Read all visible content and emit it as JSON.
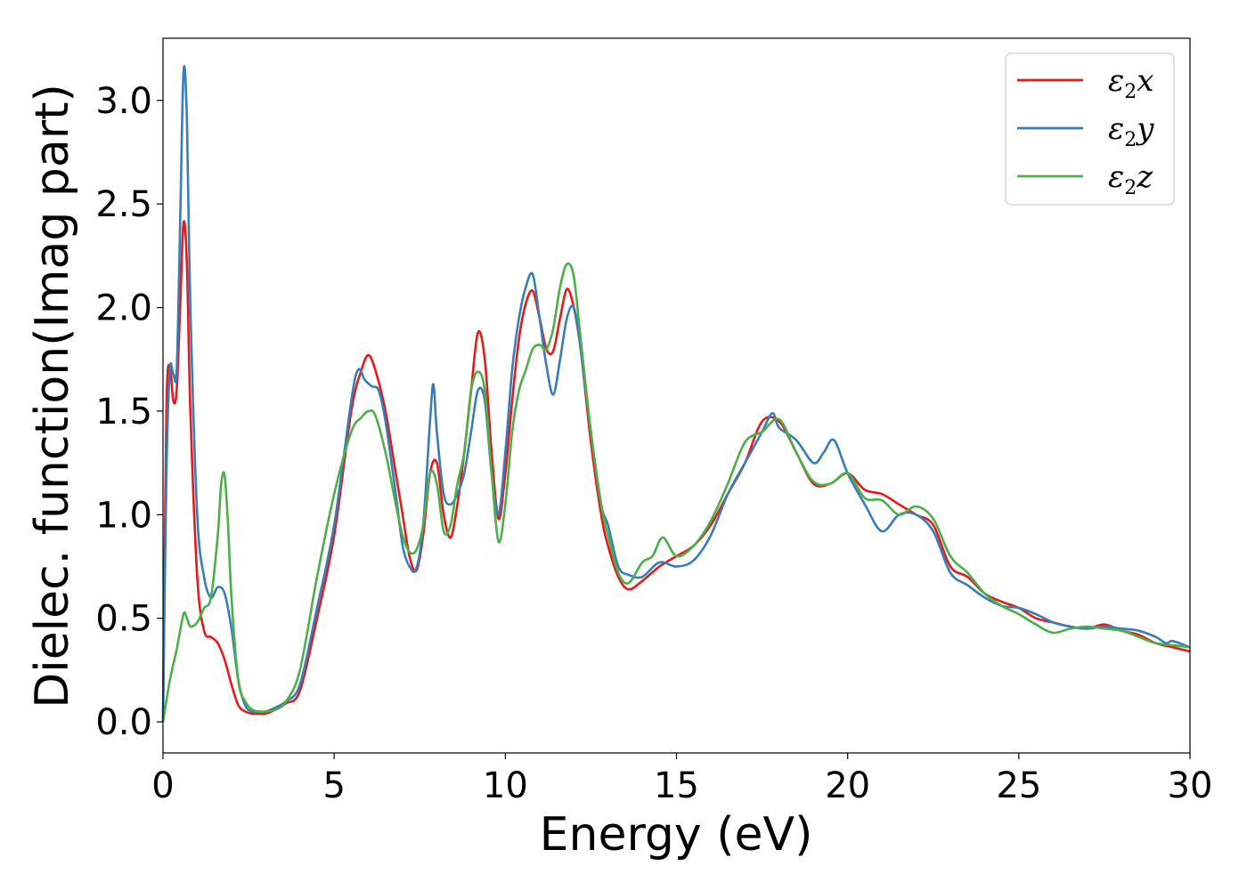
{
  "chart_data": {
    "type": "line",
    "title": "",
    "xlabel": "Energy (eV)",
    "ylabel": "Dielec. function(Imag part)",
    "xlim": [
      0,
      30
    ],
    "ylim": [
      -0.15,
      3.3
    ],
    "xticks": [
      0,
      5,
      10,
      15,
      20,
      25,
      30
    ],
    "xtick_labels": [
      "0",
      "5",
      "10",
      "15",
      "20",
      "25",
      "30"
    ],
    "yticks": [
      0.0,
      0.5,
      1.0,
      1.5,
      2.0,
      2.5,
      3.0
    ],
    "ytick_labels": [
      "0.0",
      "0.5",
      "1.0",
      "1.5",
      "2.0",
      "2.5",
      "3.0"
    ],
    "grid": false,
    "legend_position": "top-right",
    "series": [
      {
        "name": "ε2x",
        "label_base": "ε",
        "label_sub": "2",
        "label_var": "x",
        "color": "#e41a1c",
        "x": [
          0,
          0.1,
          0.2,
          0.3,
          0.4,
          0.5,
          0.6,
          0.7,
          0.8,
          1.0,
          1.2,
          1.4,
          1.6,
          1.8,
          2.0,
          2.2,
          2.4,
          2.6,
          2.8,
          3.0,
          3.3,
          3.6,
          4.0,
          4.5,
          5.0,
          5.5,
          5.8,
          6.0,
          6.2,
          6.5,
          6.8,
          7.0,
          7.2,
          7.4,
          7.6,
          7.8,
          8.0,
          8.2,
          8.4,
          8.6,
          8.8,
          9.0,
          9.2,
          9.4,
          9.6,
          9.8,
          10.0,
          10.2,
          10.4,
          10.6,
          10.8,
          11.0,
          11.2,
          11.4,
          11.6,
          11.8,
          12.0,
          12.2,
          12.5,
          12.8,
          13.0,
          13.3,
          13.6,
          14.0,
          14.5,
          15.0,
          15.5,
          16.0,
          16.5,
          17.0,
          17.5,
          18.0,
          18.5,
          19.0,
          19.5,
          20.0,
          20.5,
          21.0,
          21.5,
          22.0,
          22.5,
          23.0,
          23.5,
          24.0,
          24.5,
          25.0,
          25.5,
          26.0,
          26.5,
          27.0,
          27.5,
          28.0,
          28.5,
          29.0,
          29.5,
          30.0
        ],
        "y": [
          0.0,
          1.5,
          1.72,
          1.55,
          1.6,
          2.0,
          2.41,
          2.2,
          1.5,
          0.7,
          0.44,
          0.41,
          0.38,
          0.3,
          0.18,
          0.08,
          0.05,
          0.04,
          0.04,
          0.04,
          0.06,
          0.09,
          0.15,
          0.5,
          0.9,
          1.5,
          1.7,
          1.77,
          1.7,
          1.5,
          1.2,
          1.0,
          0.8,
          0.73,
          0.9,
          1.2,
          1.25,
          1.0,
          0.89,
          1.05,
          1.3,
          1.6,
          1.88,
          1.75,
          1.3,
          0.98,
          1.2,
          1.55,
          1.85,
          2.02,
          2.08,
          1.95,
          1.8,
          1.79,
          1.95,
          2.09,
          2.0,
          1.8,
          1.35,
          1.0,
          0.85,
          0.7,
          0.64,
          0.68,
          0.75,
          0.8,
          0.85,
          0.95,
          1.1,
          1.25,
          1.45,
          1.45,
          1.3,
          1.15,
          1.15,
          1.2,
          1.12,
          1.1,
          1.05,
          1.0,
          0.95,
          0.75,
          0.7,
          0.62,
          0.58,
          0.55,
          0.5,
          0.48,
          0.46,
          0.45,
          0.47,
          0.44,
          0.42,
          0.38,
          0.36,
          0.34
        ]
      },
      {
        "name": "ε2y",
        "label_base": "ε",
        "label_sub": "2",
        "label_var": "y",
        "color": "#377eb8",
        "x": [
          0,
          0.1,
          0.2,
          0.3,
          0.4,
          0.5,
          0.6,
          0.7,
          0.8,
          1.0,
          1.2,
          1.4,
          1.6,
          1.8,
          2.0,
          2.2,
          2.4,
          2.6,
          2.8,
          3.0,
          3.3,
          3.6,
          4.0,
          4.5,
          5.0,
          5.5,
          5.7,
          5.9,
          6.1,
          6.3,
          6.5,
          6.8,
          7.0,
          7.2,
          7.4,
          7.6,
          7.8,
          7.9,
          8.0,
          8.2,
          8.4,
          8.6,
          8.8,
          9.0,
          9.2,
          9.4,
          9.6,
          9.8,
          10.0,
          10.2,
          10.4,
          10.6,
          10.8,
          11.0,
          11.2,
          11.4,
          11.6,
          11.8,
          12.0,
          12.2,
          12.5,
          12.8,
          13.0,
          13.3,
          13.6,
          14.0,
          14.5,
          15.0,
          15.5,
          16.0,
          16.5,
          17.0,
          17.5,
          17.8,
          18.0,
          18.5,
          19.0,
          19.3,
          19.6,
          20.0,
          20.5,
          21.0,
          21.5,
          22.0,
          22.5,
          23.0,
          23.5,
          24.0,
          24.5,
          25.0,
          25.5,
          26.0,
          26.5,
          27.0,
          27.5,
          28.0,
          28.5,
          29.0,
          29.3,
          29.5,
          30.0
        ],
        "y": [
          0.0,
          1.2,
          1.7,
          1.68,
          1.7,
          2.4,
          3.14,
          2.9,
          2.0,
          1.0,
          0.7,
          0.6,
          0.65,
          0.62,
          0.45,
          0.2,
          0.08,
          0.05,
          0.05,
          0.05,
          0.07,
          0.1,
          0.18,
          0.55,
          0.95,
          1.55,
          1.7,
          1.65,
          1.62,
          1.6,
          1.45,
          1.1,
          0.85,
          0.75,
          0.74,
          0.95,
          1.45,
          1.63,
          1.4,
          1.1,
          1.05,
          1.1,
          1.2,
          1.4,
          1.6,
          1.55,
          1.2,
          1.0,
          1.3,
          1.7,
          1.95,
          2.1,
          2.16,
          1.95,
          1.72,
          1.58,
          1.75,
          1.95,
          2.0,
          1.8,
          1.4,
          1.05,
          0.95,
          0.75,
          0.71,
          0.7,
          0.77,
          0.75,
          0.78,
          0.9,
          1.1,
          1.25,
          1.4,
          1.49,
          1.42,
          1.36,
          1.25,
          1.3,
          1.36,
          1.2,
          1.05,
          0.92,
          1.0,
          1.0,
          0.92,
          0.72,
          0.66,
          0.6,
          0.56,
          0.55,
          0.52,
          0.48,
          0.46,
          0.45,
          0.46,
          0.45,
          0.44,
          0.41,
          0.38,
          0.39,
          0.36
        ]
      },
      {
        "name": "ε2z",
        "label_base": "ε",
        "label_sub": "2",
        "label_var": "z",
        "color": "#4daf4a",
        "x": [
          0,
          0.2,
          0.4,
          0.6,
          0.7,
          0.8,
          1.0,
          1.2,
          1.4,
          1.6,
          1.7,
          1.8,
          1.9,
          2.0,
          2.2,
          2.4,
          2.6,
          2.8,
          3.0,
          3.3,
          3.6,
          4.0,
          4.5,
          5.0,
          5.5,
          5.8,
          6.0,
          6.2,
          6.5,
          6.8,
          7.0,
          7.2,
          7.4,
          7.6,
          7.8,
          8.0,
          8.2,
          8.4,
          8.6,
          8.8,
          9.0,
          9.2,
          9.4,
          9.6,
          9.8,
          10.0,
          10.2,
          10.4,
          10.6,
          10.8,
          11.0,
          11.2,
          11.4,
          11.6,
          11.8,
          12.0,
          12.2,
          12.5,
          12.8,
          13.0,
          13.3,
          13.6,
          14.0,
          14.3,
          14.6,
          15.0,
          15.5,
          16.0,
          16.5,
          17.0,
          17.5,
          18.0,
          18.5,
          19.0,
          19.5,
          20.0,
          20.5,
          21.0,
          21.5,
          22.0,
          22.5,
          23.0,
          23.5,
          24.0,
          24.5,
          25.0,
          25.5,
          26.0,
          26.5,
          27.0,
          27.5,
          28.0,
          28.5,
          29.0,
          29.5,
          30.0
        ],
        "y": [
          0.0,
          0.2,
          0.35,
          0.52,
          0.5,
          0.46,
          0.48,
          0.55,
          0.6,
          0.9,
          1.15,
          1.19,
          0.95,
          0.6,
          0.2,
          0.1,
          0.06,
          0.05,
          0.05,
          0.06,
          0.1,
          0.25,
          0.7,
          1.1,
          1.4,
          1.47,
          1.5,
          1.48,
          1.3,
          1.05,
          0.9,
          0.82,
          0.83,
          0.95,
          1.2,
          1.15,
          0.92,
          0.95,
          1.15,
          1.3,
          1.6,
          1.69,
          1.6,
          1.2,
          0.87,
          1.05,
          1.4,
          1.6,
          1.7,
          1.8,
          1.82,
          1.8,
          1.9,
          2.1,
          2.21,
          2.15,
          1.85,
          1.4,
          1.05,
          0.9,
          0.72,
          0.67,
          0.77,
          0.8,
          0.89,
          0.8,
          0.85,
          0.97,
          1.15,
          1.35,
          1.4,
          1.46,
          1.3,
          1.16,
          1.15,
          1.2,
          1.08,
          1.07,
          1.0,
          1.04,
          0.98,
          0.8,
          0.72,
          0.62,
          0.56,
          0.52,
          0.47,
          0.43,
          0.45,
          0.46,
          0.45,
          0.44,
          0.41,
          0.38,
          0.37,
          0.36
        ]
      }
    ]
  }
}
